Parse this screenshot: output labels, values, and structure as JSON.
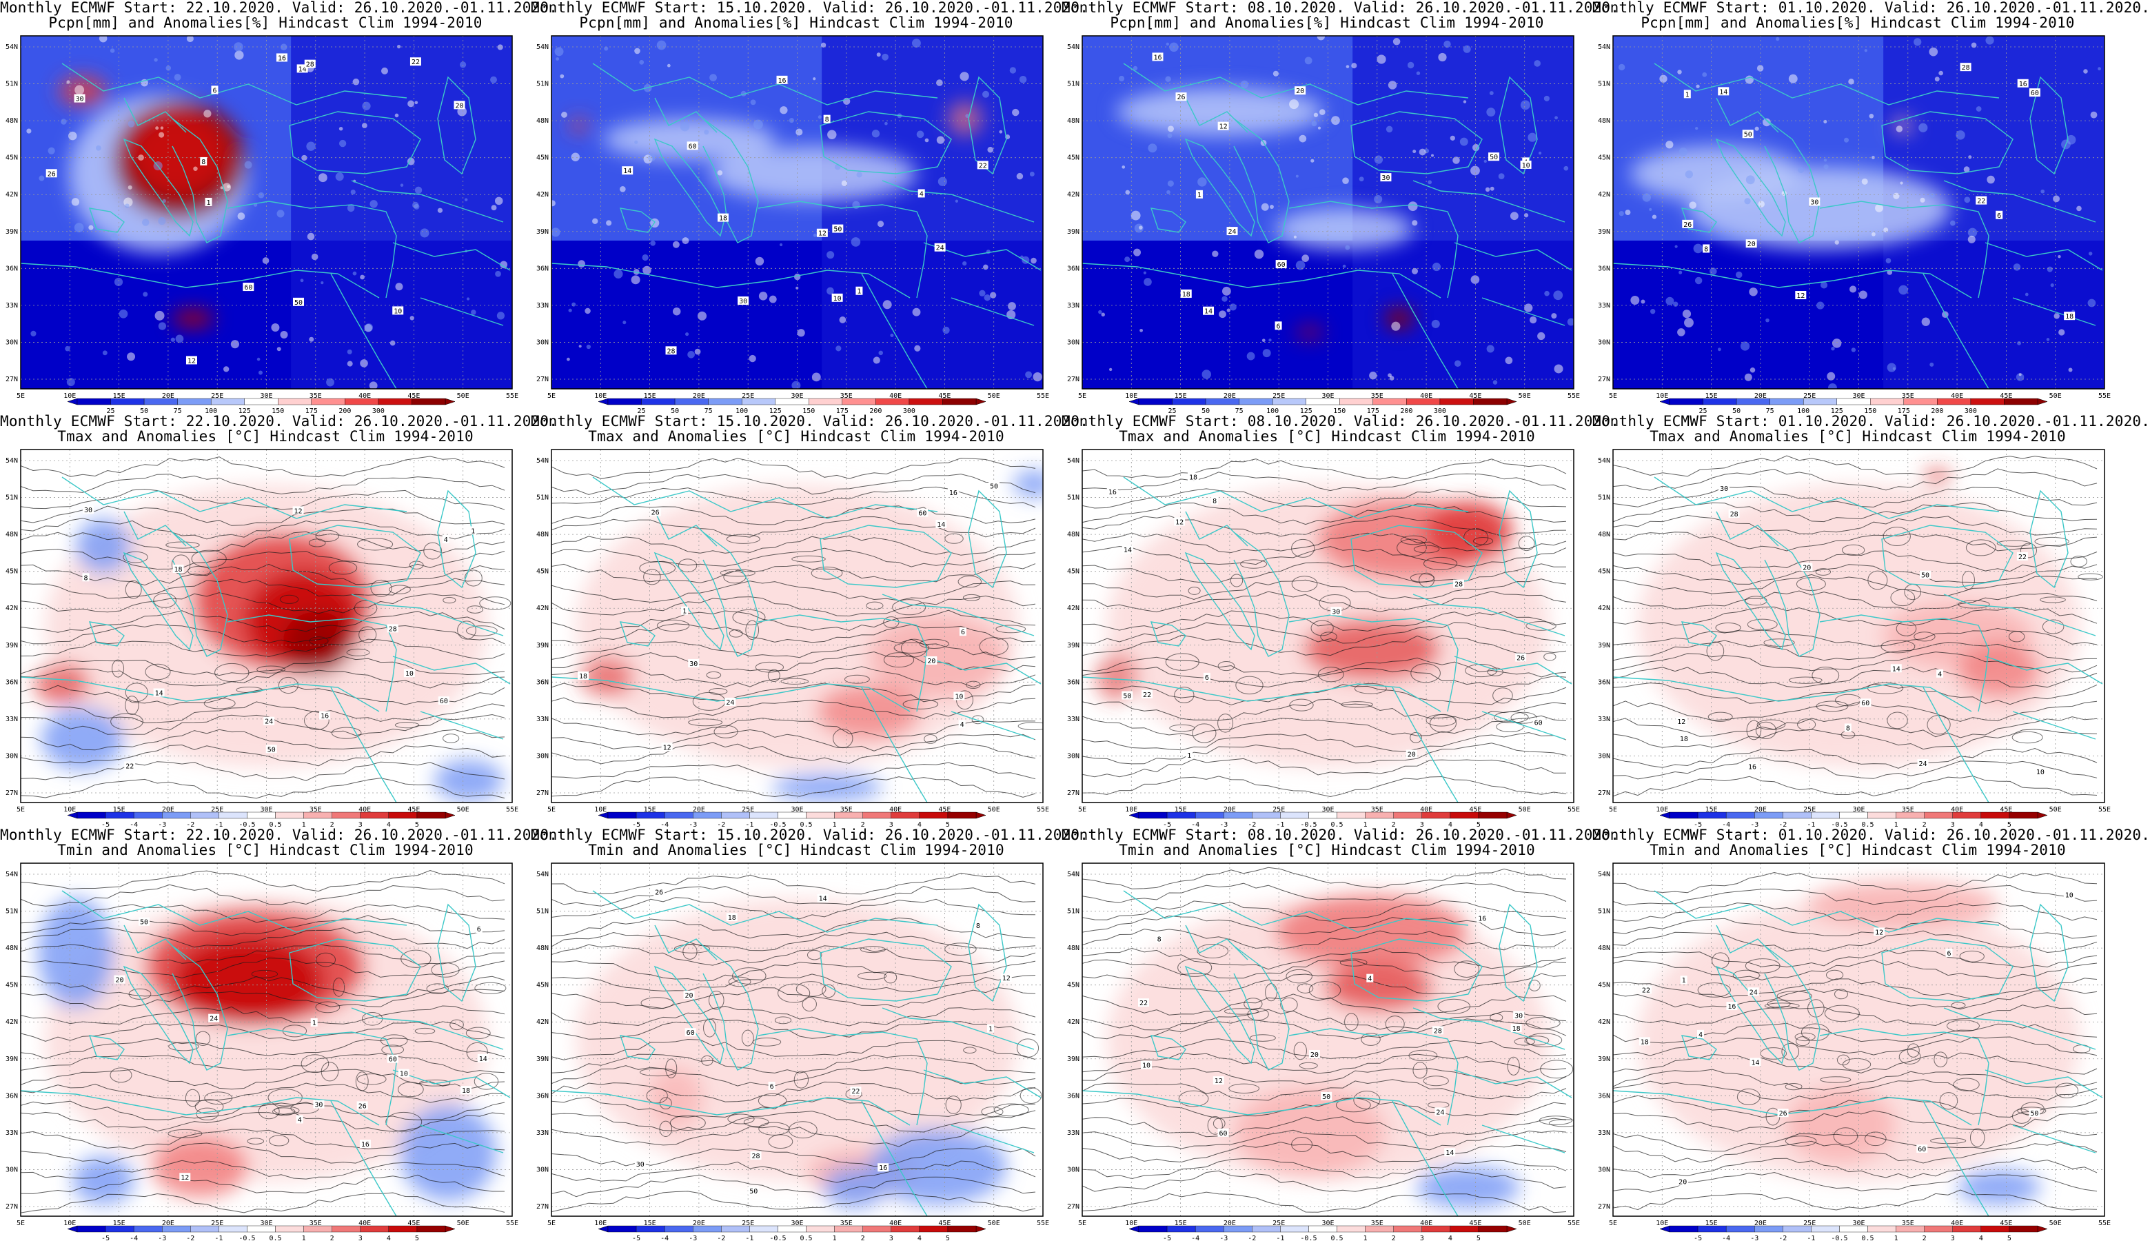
{
  "rows": [
    {
      "variable": "precip",
      "subtitle": "Pcpn[mm] and Anomalies[%] Hindcast Clim 1994-2010",
      "colorbar_ticks": [
        "25",
        "50",
        "75",
        "100",
        "125",
        "150",
        "175",
        "200",
        "300"
      ],
      "colorbar_colors": [
        "#0000c8",
        "#1e32e6",
        "#4a68f0",
        "#7c9cf6",
        "#b8c8fa",
        "#ffffff",
        "#ffd0d0",
        "#ff9090",
        "#f04848",
        "#cc1010",
        "#8c0000"
      ]
    },
    {
      "variable": "tmax",
      "subtitle": "Tmax and Anomalies [°C] Hindcast Clim 1994-2010",
      "colorbar_ticks": [
        "-5",
        "-4",
        "-3",
        "-2",
        "-1",
        "-0.5",
        "0.5",
        "1",
        "2",
        "3",
        "4",
        "5"
      ],
      "colorbar_colors": [
        "#0000c8",
        "#1e32e6",
        "#4a68f0",
        "#7c9cf6",
        "#b0c0f8",
        "#dce4fc",
        "#ffffff",
        "#fcdcdc",
        "#f8b0b0",
        "#f07878",
        "#e03c3c",
        "#c80a0a",
        "#960000"
      ]
    },
    {
      "variable": "tmin",
      "subtitle": "Tmin and Anomalies [°C] Hindcast Clim 1994-2010",
      "colorbar_ticks": [
        "-5",
        "-4",
        "-3",
        "-2",
        "-1",
        "-0.5",
        "0.5",
        "1",
        "2",
        "3",
        "4",
        "5"
      ],
      "colorbar_colors": [
        "#0000c8",
        "#1e32e6",
        "#4a68f0",
        "#7c9cf6",
        "#b0c0f8",
        "#dce4fc",
        "#ffffff",
        "#fcdcdc",
        "#f8b0b0",
        "#f07878",
        "#e03c3c",
        "#c80a0a",
        "#960000"
      ]
    }
  ],
  "columns": [
    {
      "header": "Monthly ECMWF Start: 22.10.2020. Valid: 26.10.2020.-01.11.2020."
    },
    {
      "header": "Monthly ECMWF Start: 15.10.2020. Valid: 26.10.2020.-01.11.2020."
    },
    {
      "header": "Monthly ECMWF Start: 08.10.2020. Valid: 26.10.2020.-01.11.2020."
    },
    {
      "header": "Monthly ECMWF Start: 01.10.2020. Valid: 26.10.2020.-01.11.2020."
    }
  ],
  "lat_labels": [
    "54N",
    "51N",
    "48N",
    "45N",
    "42N",
    "39N",
    "36N",
    "33N",
    "30N",
    "27N"
  ],
  "lon_labels": [
    "5E",
    "10E",
    "15E",
    "20E",
    "25E",
    "30E",
    "35E",
    "40E",
    "45E",
    "50E",
    "55E"
  ],
  "contour_labels": [
    "10",
    "1",
    "30",
    "60",
    "50",
    "12",
    "14",
    "16",
    "18",
    "20",
    "22",
    "24",
    "26",
    "28",
    "4",
    "6",
    "8"
  ],
  "anomaly_patterns": [
    [
      "wet-south-europe-turkey",
      "dry-rest"
    ],
    [
      "dry-mostly",
      "dry-mostly"
    ],
    [
      "dry-mostly",
      "wet-egypt-spot"
    ],
    [
      "dry-mostly",
      "dry-mostly"
    ],
    [
      "very-warm-turkey-blacksea",
      "cool-italy-gulf"
    ],
    [
      "warm-east",
      "near-normal-west"
    ],
    [
      "warm-north-east",
      "warm"
    ],
    [
      "warm-east",
      "warm"
    ],
    [
      "very-warm-turkey-blacksea",
      "cool-southeast"
    ],
    [
      "near-normal",
      "cool-southeast"
    ],
    [
      "warm-north",
      "near-normal"
    ],
    [
      "warm-north",
      "near-normal"
    ]
  ],
  "colors": {
    "coast": "#3cc8c8",
    "contour": "#1a1a1a",
    "grid": "#9a9a9a",
    "frame": "#000000"
  }
}
